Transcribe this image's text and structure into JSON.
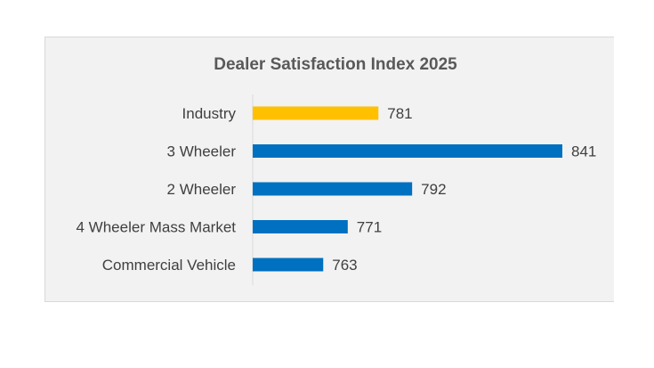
{
  "chart_data": {
    "type": "bar",
    "orientation": "horizontal",
    "title": "Dealer Satisfaction Index 2025",
    "categories": [
      "Industry",
      "3 Wheeler",
      "2 Wheeler",
      "4 Wheeler Mass Market",
      "Commercial Vehicle"
    ],
    "values": [
      781,
      841,
      792,
      771,
      763
    ],
    "data_labels": [
      "781",
      "841",
      "792",
      "771",
      "763"
    ],
    "colors": [
      "#FFC000",
      "#0070C0",
      "#0070C0",
      "#0070C0",
      "#0070C0"
    ],
    "xlim": [
      740,
      841
    ],
    "grid": false,
    "legend": "none"
  }
}
